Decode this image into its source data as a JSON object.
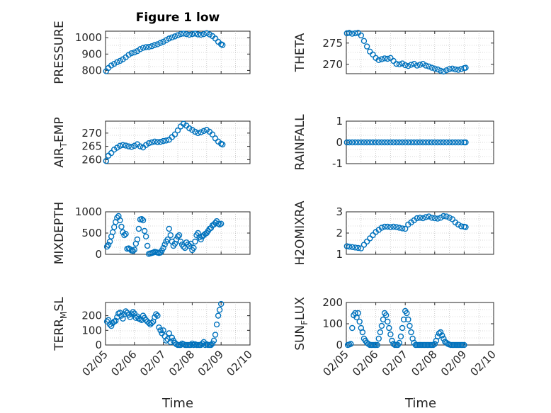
{
  "figure": {
    "title": "Figure 1 low",
    "marker_color": "#0072BD",
    "xlabel": "Time",
    "xticks": [
      "02/05",
      "02/06",
      "02/07",
      "02/08",
      "02/09",
      "02/10"
    ]
  },
  "chart_data": [
    {
      "type": "scatter",
      "panel": "top-left",
      "title": "Figure 1 low",
      "ylabel": "PRESSURE",
      "ylabel_base": "PRESSURE",
      "ylabel_sub": "",
      "ylabel_tail": "",
      "ylim": [
        780,
        1040
      ],
      "yticks": [
        800,
        900,
        1000
      ],
      "xlim": [
        0,
        5
      ],
      "x_unit": "days from 02/05",
      "grid": true,
      "x": [
        0.02,
        0.1,
        0.2,
        0.3,
        0.4,
        0.5,
        0.6,
        0.7,
        0.8,
        0.9,
        1.0,
        1.1,
        1.2,
        1.3,
        1.4,
        1.5,
        1.6,
        1.7,
        1.8,
        1.9,
        2.0,
        2.1,
        2.2,
        2.3,
        2.4,
        2.5,
        2.6,
        2.7,
        2.8,
        2.9,
        3.0,
        3.1,
        3.2,
        3.3,
        3.4,
        3.5,
        3.6,
        3.7,
        3.8,
        3.9,
        4.0,
        4.05
      ],
      "y": [
        795,
        815,
        830,
        840,
        850,
        858,
        868,
        880,
        895,
        905,
        910,
        918,
        930,
        938,
        942,
        944,
        948,
        955,
        960,
        968,
        975,
        985,
        995,
        1002,
        1008,
        1015,
        1022,
        1025,
        1022,
        1018,
        1022,
        1025,
        1020,
        1018,
        1022,
        1028,
        1020,
        1010,
        995,
        975,
        960,
        955
      ]
    },
    {
      "type": "scatter",
      "panel": "top-right",
      "ylabel": "THETA",
      "ylabel_base": "THETA",
      "ylabel_sub": "",
      "ylabel_tail": "",
      "ylim": [
        267.8,
        277.8
      ],
      "yticks": [
        270,
        275
      ],
      "xlim": [
        0,
        5
      ],
      "x_unit": "days from 02/05",
      "grid": true,
      "x": [
        0.02,
        0.1,
        0.2,
        0.3,
        0.4,
        0.5,
        0.6,
        0.7,
        0.8,
        0.9,
        1.0,
        1.1,
        1.2,
        1.3,
        1.4,
        1.5,
        1.6,
        1.7,
        1.8,
        1.9,
        2.0,
        2.1,
        2.2,
        2.3,
        2.4,
        2.5,
        2.6,
        2.7,
        2.8,
        2.9,
        3.0,
        3.1,
        3.2,
        3.3,
        3.4,
        3.5,
        3.6,
        3.7,
        3.8,
        3.9,
        4.0,
        4.05
      ],
      "y": [
        277.3,
        277.4,
        277.2,
        277.3,
        277.4,
        276.8,
        275.5,
        274.2,
        273.0,
        272.3,
        271.5,
        271.0,
        271.2,
        271.4,
        271.3,
        271.5,
        270.8,
        270.1,
        270.0,
        270.2,
        269.8,
        269.6,
        269.9,
        270.1,
        269.7,
        269.9,
        270.1,
        269.7,
        269.5,
        269.2,
        269.0,
        268.8,
        268.5,
        268.3,
        268.6,
        268.9,
        269.0,
        268.8,
        268.7,
        268.9,
        269.1,
        269.2
      ]
    },
    {
      "type": "scatter",
      "panel": "mid-left",
      "ylabel": "AIR_TEMP",
      "ylabel_base": "AIR",
      "ylabel_sub": "T",
      "ylabel_tail": "EMP",
      "ylim": [
        258.5,
        274.5
      ],
      "yticks": [
        260,
        265,
        270
      ],
      "xlim": [
        0,
        5
      ],
      "x_unit": "days from 02/05",
      "grid": true,
      "x": [
        0.02,
        0.1,
        0.2,
        0.3,
        0.4,
        0.5,
        0.6,
        0.7,
        0.8,
        0.9,
        1.0,
        1.1,
        1.2,
        1.3,
        1.4,
        1.5,
        1.6,
        1.7,
        1.8,
        1.9,
        2.0,
        2.1,
        2.2,
        2.3,
        2.4,
        2.5,
        2.6,
        2.7,
        2.8,
        2.9,
        3.0,
        3.1,
        3.2,
        3.3,
        3.4,
        3.5,
        3.6,
        3.7,
        3.8,
        3.9,
        4.0,
        4.05
      ],
      "y": [
        259.5,
        261.5,
        262.5,
        263.8,
        264.5,
        265.2,
        265.5,
        265.3,
        265.0,
        264.8,
        265.2,
        265.8,
        265.0,
        264.6,
        265.5,
        266.2,
        266.5,
        266.8,
        266.6,
        266.7,
        267.0,
        267.2,
        267.5,
        268.5,
        269.5,
        271.0,
        272.5,
        273.5,
        272.8,
        271.8,
        271.2,
        270.5,
        270.0,
        270.3,
        270.8,
        271.2,
        270.5,
        269.5,
        268.0,
        266.8,
        266.0,
        265.7
      ]
    },
    {
      "type": "scatter",
      "panel": "mid-right",
      "ylabel": "RAINFALL",
      "ylabel_base": "RAINFALL",
      "ylabel_sub": "",
      "ylabel_tail": "",
      "ylim": [
        -1,
        1
      ],
      "yticks": [
        -1,
        0,
        1
      ],
      "xlim": [
        0,
        5
      ],
      "x_unit": "days from 02/05",
      "grid": true,
      "x": [
        0.02,
        0.1,
        0.2,
        0.3,
        0.4,
        0.5,
        0.6,
        0.7,
        0.8,
        0.9,
        1.0,
        1.1,
        1.2,
        1.3,
        1.4,
        1.5,
        1.6,
        1.7,
        1.8,
        1.9,
        2.0,
        2.1,
        2.2,
        2.3,
        2.4,
        2.5,
        2.6,
        2.7,
        2.8,
        2.9,
        3.0,
        3.1,
        3.2,
        3.3,
        3.4,
        3.5,
        3.6,
        3.7,
        3.8,
        3.9,
        4.0,
        4.05
      ],
      "y": [
        0,
        0,
        0,
        0,
        0,
        0,
        0,
        0,
        0,
        0,
        0,
        0,
        0,
        0,
        0,
        0,
        0,
        0,
        0,
        0,
        0,
        0,
        0,
        0,
        0,
        0,
        0,
        0,
        0,
        0,
        0,
        0,
        0,
        0,
        0,
        0,
        0,
        0,
        0,
        0,
        0,
        0
      ]
    },
    {
      "type": "scatter",
      "panel": "row3-left",
      "ylabel": "MIXDEPTH",
      "ylabel_base": "MIXDEPTH",
      "ylabel_sub": "",
      "ylabel_tail": "",
      "ylim": [
        0,
        1000
      ],
      "yticks": [
        0,
        500,
        1000
      ],
      "xlim": [
        0,
        5
      ],
      "x_unit": "days from 02/05",
      "grid": true,
      "x": [
        0.05,
        0.1,
        0.15,
        0.2,
        0.25,
        0.3,
        0.35,
        0.4,
        0.45,
        0.5,
        0.55,
        0.6,
        0.65,
        0.7,
        0.75,
        0.8,
        0.85,
        0.9,
        0.95,
        1.0,
        1.05,
        1.1,
        1.15,
        1.2,
        1.25,
        1.3,
        1.35,
        1.4,
        1.45,
        1.5,
        1.55,
        1.6,
        1.65,
        1.7,
        1.75,
        1.8,
        1.85,
        1.9,
        1.95,
        2.0,
        2.05,
        2.1,
        2.15,
        2.2,
        2.25,
        2.3,
        2.35,
        2.4,
        2.45,
        2.5,
        2.55,
        2.6,
        2.65,
        2.7,
        2.75,
        2.8,
        2.85,
        2.9,
        2.95,
        3.0,
        3.05,
        3.1,
        3.15,
        3.2,
        3.25,
        3.3,
        3.35,
        3.4,
        3.45,
        3.5,
        3.55,
        3.6,
        3.65,
        3.7,
        3.75,
        3.8,
        3.85,
        3.9,
        3.95,
        4.0
      ],
      "y": [
        180,
        220,
        300,
        420,
        520,
        640,
        760,
        860,
        900,
        800,
        650,
        520,
        450,
        480,
        130,
        140,
        120,
        90,
        80,
        110,
        250,
        350,
        600,
        820,
        830,
        800,
        550,
        420,
        200,
        10,
        20,
        30,
        40,
        60,
        50,
        40,
        30,
        40,
        90,
        150,
        230,
        300,
        350,
        600,
        450,
        300,
        200,
        250,
        350,
        420,
        450,
        300,
        230,
        180,
        150,
        280,
        230,
        200,
        250,
        100,
        150,
        300,
        450,
        500,
        400,
        350,
        420,
        450,
        480,
        500,
        550,
        600,
        620,
        680,
        700,
        740,
        780,
        720,
        700,
        720
      ]
    },
    {
      "type": "scatter",
      "panel": "row3-right",
      "ylabel": "H2OMIXRA",
      "ylabel_base": "H2OMIXRA",
      "ylabel_sub": "",
      "ylabel_tail": "",
      "ylim": [
        1,
        3
      ],
      "yticks": [
        1,
        2,
        3
      ],
      "xlim": [
        0,
        5
      ],
      "x_unit": "days from 02/05",
      "grid": true,
      "x": [
        0.02,
        0.1,
        0.2,
        0.3,
        0.4,
        0.5,
        0.6,
        0.7,
        0.8,
        0.9,
        1.0,
        1.1,
        1.2,
        1.3,
        1.4,
        1.5,
        1.6,
        1.7,
        1.8,
        1.9,
        2.0,
        2.1,
        2.2,
        2.3,
        2.4,
        2.5,
        2.6,
        2.7,
        2.8,
        2.9,
        3.0,
        3.1,
        3.2,
        3.3,
        3.4,
        3.5,
        3.6,
        3.7,
        3.8,
        3.9,
        4.0,
        4.05
      ],
      "y": [
        1.38,
        1.36,
        1.34,
        1.32,
        1.3,
        1.28,
        1.45,
        1.6,
        1.75,
        1.9,
        2.05,
        2.15,
        2.25,
        2.3,
        2.3,
        2.28,
        2.3,
        2.28,
        2.25,
        2.22,
        2.2,
        2.4,
        2.5,
        2.6,
        2.7,
        2.72,
        2.7,
        2.75,
        2.78,
        2.72,
        2.7,
        2.68,
        2.72,
        2.8,
        2.78,
        2.72,
        2.65,
        2.5,
        2.4,
        2.32,
        2.3,
        2.28
      ]
    },
    {
      "type": "scatter",
      "panel": "bottom-left",
      "ylabel": "TERR_MSL",
      "ylabel_base": "TERR",
      "ylabel_sub": "M",
      "ylabel_tail": "SL",
      "ylim": [
        0,
        290
      ],
      "yticks": [
        0,
        100,
        200
      ],
      "xlim": [
        0,
        5
      ],
      "x_unit": "days from 02/05",
      "grid": true,
      "x": [
        0.05,
        0.1,
        0.15,
        0.2,
        0.25,
        0.3,
        0.35,
        0.4,
        0.45,
        0.5,
        0.55,
        0.6,
        0.65,
        0.7,
        0.75,
        0.8,
        0.85,
        0.9,
        0.95,
        1.0,
        1.05,
        1.1,
        1.15,
        1.2,
        1.25,
        1.3,
        1.35,
        1.4,
        1.45,
        1.5,
        1.55,
        1.6,
        1.65,
        1.7,
        1.75,
        1.8,
        1.85,
        1.9,
        1.95,
        2.0,
        2.05,
        2.1,
        2.15,
        2.2,
        2.25,
        2.3,
        2.35,
        2.4,
        2.45,
        2.5,
        2.55,
        2.6,
        2.65,
        2.7,
        2.75,
        2.8,
        2.85,
        2.9,
        2.95,
        3.0,
        3.05,
        3.1,
        3.15,
        3.2,
        3.25,
        3.3,
        3.35,
        3.4,
        3.45,
        3.5,
        3.55,
        3.6,
        3.65,
        3.7,
        3.75,
        3.8,
        3.85,
        3.9,
        3.95,
        4.0
      ],
      "y": [
        160,
        170,
        140,
        130,
        150,
        160,
        165,
        190,
        215,
        220,
        200,
        180,
        210,
        230,
        220,
        205,
        190,
        210,
        225,
        215,
        185,
        195,
        180,
        175,
        170,
        200,
        185,
        170,
        160,
        150,
        140,
        150,
        160,
        190,
        210,
        200,
        120,
        100,
        80,
        100,
        60,
        30,
        40,
        80,
        20,
        50,
        30,
        15,
        5,
        0,
        0,
        0,
        10,
        5,
        0,
        0,
        0,
        0,
        0,
        10,
        0,
        5,
        0,
        0,
        0,
        0,
        10,
        20,
        0,
        5,
        0,
        0,
        0,
        10,
        30,
        70,
        140,
        200,
        240,
        280
      ]
    },
    {
      "type": "scatter",
      "panel": "bottom-right",
      "ylabel": "SUN_FLUX",
      "ylabel_base": "SUN",
      "ylabel_sub": "F",
      "ylabel_tail": "LUX",
      "ylim": [
        0,
        200
      ],
      "yticks": [
        0,
        100,
        200
      ],
      "xlim": [
        0,
        5
      ],
      "x_unit": "days from 02/05",
      "grid": true,
      "x": [
        0.05,
        0.1,
        0.15,
        0.2,
        0.25,
        0.3,
        0.35,
        0.4,
        0.45,
        0.5,
        0.55,
        0.6,
        0.65,
        0.7,
        0.75,
        0.8,
        0.85,
        0.9,
        0.95,
        1.0,
        1.05,
        1.1,
        1.15,
        1.2,
        1.25,
        1.3,
        1.35,
        1.4,
        1.45,
        1.5,
        1.55,
        1.6,
        1.65,
        1.7,
        1.75,
        1.8,
        1.85,
        1.9,
        1.95,
        2.0,
        2.05,
        2.1,
        2.15,
        2.2,
        2.25,
        2.3,
        2.35,
        2.4,
        2.45,
        2.5,
        2.55,
        2.6,
        2.65,
        2.7,
        2.75,
        2.8,
        2.85,
        2.9,
        2.95,
        3.0,
        3.05,
        3.1,
        3.15,
        3.2,
        3.25,
        3.3,
        3.35,
        3.4,
        3.45,
        3.5,
        3.55,
        3.6,
        3.65,
        3.7,
        3.75,
        3.8,
        3.85,
        3.9,
        3.95,
        4.0
      ],
      "y": [
        0,
        2,
        5,
        80,
        140,
        150,
        130,
        150,
        110,
        80,
        60,
        30,
        20,
        10,
        5,
        0,
        0,
        0,
        0,
        0,
        0,
        30,
        60,
        90,
        120,
        150,
        140,
        110,
        80,
        50,
        20,
        5,
        0,
        0,
        0,
        10,
        40,
        80,
        120,
        160,
        150,
        120,
        90,
        60,
        30,
        10,
        0,
        0,
        0,
        0,
        0,
        0,
        0,
        0,
        0,
        0,
        0,
        0,
        0,
        5,
        20,
        40,
        55,
        60,
        45,
        30,
        15,
        10,
        5,
        2,
        0,
        0,
        0,
        0,
        0,
        0,
        0,
        0,
        0,
        0
      ]
    }
  ]
}
